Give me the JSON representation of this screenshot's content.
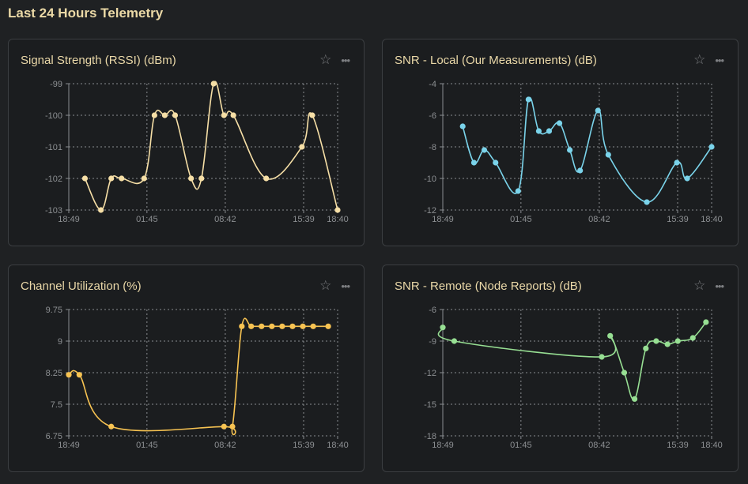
{
  "page": {
    "title": "Last 24 Hours Telemetry"
  },
  "panels": [
    {
      "title": "Signal Strength (RSSI) (dBm)",
      "star": "☆",
      "more": "•••",
      "color": "#f6dfa6"
    },
    {
      "title": "SNR - Local (Our Measurements) (dB)",
      "star": "☆",
      "more": "•••",
      "color": "#7ad3ea"
    },
    {
      "title": "Channel Utilization (%)",
      "star": "☆",
      "more": "•••",
      "color": "#f7c352"
    },
    {
      "title": "SNR - Remote (Node Reports) (dB)",
      "star": "☆",
      "more": "•••",
      "color": "#97df93"
    }
  ],
  "chart_data": [
    {
      "type": "line",
      "title": "Signal Strength (RSSI) (dBm)",
      "x_ticks": [
        "18:49",
        "01:45",
        "08:42",
        "15:39",
        "18:40"
      ],
      "y_ticks": [
        "-99",
        "-100",
        "-101",
        "-102",
        "-103"
      ],
      "ylim": [
        -103,
        -99
      ],
      "xlim": [
        "18:49",
        "18:40"
      ],
      "grid": true,
      "color": "#f6dfa6",
      "points": [
        {
          "x": "20:15",
          "y": -102
        },
        {
          "x": "21:40",
          "y": -103
        },
        {
          "x": "22:35",
          "y": -102
        },
        {
          "x": "23:30",
          "y": -102
        },
        {
          "x": "01:30",
          "y": -102
        },
        {
          "x": "02:25",
          "y": -100
        },
        {
          "x": "03:20",
          "y": -100
        },
        {
          "x": "04:15",
          "y": -100
        },
        {
          "x": "05:40",
          "y": -102
        },
        {
          "x": "06:35",
          "y": -102
        },
        {
          "x": "07:40",
          "y": -99
        },
        {
          "x": "08:35",
          "y": -100
        },
        {
          "x": "09:25",
          "y": -100
        },
        {
          "x": "12:20",
          "y": -102
        },
        {
          "x": "15:30",
          "y": -101
        },
        {
          "x": "16:25",
          "y": -100
        },
        {
          "x": "18:40",
          "y": -103
        }
      ]
    },
    {
      "type": "line",
      "title": "SNR - Local (Our Measurements) (dB)",
      "x_ticks": [
        "18:49",
        "01:45",
        "08:42",
        "15:39",
        "18:40"
      ],
      "y_ticks": [
        "-4",
        "-6",
        "-8",
        "-10",
        "-12"
      ],
      "ylim": [
        -12,
        -4
      ],
      "xlim": [
        "18:49",
        "18:40"
      ],
      "grid": true,
      "color": "#7ad3ea",
      "points": [
        {
          "x": "20:35",
          "y": -6.7
        },
        {
          "x": "21:35",
          "y": -9.0
        },
        {
          "x": "22:30",
          "y": -8.2
        },
        {
          "x": "23:30",
          "y": -9.0
        },
        {
          "x": "01:30",
          "y": -10.8
        },
        {
          "x": "02:25",
          "y": -5.0
        },
        {
          "x": "03:20",
          "y": -7.0
        },
        {
          "x": "04:15",
          "y": -7.0
        },
        {
          "x": "05:10",
          "y": -6.5
        },
        {
          "x": "06:05",
          "y": -8.2
        },
        {
          "x": "07:00",
          "y": -9.5
        },
        {
          "x": "08:35",
          "y": -5.7
        },
        {
          "x": "09:30",
          "y": -8.5
        },
        {
          "x": "12:55",
          "y": -11.5
        },
        {
          "x": "15:35",
          "y": -9.0
        },
        {
          "x": "16:30",
          "y": -10.0
        },
        {
          "x": "18:40",
          "y": -8.0
        }
      ]
    },
    {
      "type": "line",
      "title": "Channel Utilization (%)",
      "x_ticks": [
        "18:49",
        "01:45",
        "08:42",
        "15:39",
        "18:40"
      ],
      "y_ticks": [
        "9.75",
        "9",
        "8.25",
        "7.5",
        "6.75"
      ],
      "ylim": [
        6.75,
        9.75
      ],
      "xlim": [
        "18:49",
        "18:40"
      ],
      "grid": true,
      "color": "#f7c352",
      "points": [
        {
          "x": "18:49",
          "y": 8.2
        },
        {
          "x": "19:45",
          "y": 8.2
        },
        {
          "x": "22:35",
          "y": 6.97
        },
        {
          "x": "08:35",
          "y": 6.97
        },
        {
          "x": "09:20",
          "y": 6.97
        },
        {
          "x": "10:10",
          "y": 9.35
        },
        {
          "x": "11:00",
          "y": 9.35
        },
        {
          "x": "11:55",
          "y": 9.35
        },
        {
          "x": "12:50",
          "y": 9.35
        },
        {
          "x": "13:45",
          "y": 9.35
        },
        {
          "x": "14:40",
          "y": 9.35
        },
        {
          "x": "15:35",
          "y": 9.35
        },
        {
          "x": "16:30",
          "y": 9.35
        },
        {
          "x": "17:50",
          "y": 9.35
        }
      ]
    },
    {
      "type": "line",
      "title": "SNR - Remote (Node Reports) (dB)",
      "x_ticks": [
        "18:49",
        "01:45",
        "08:42",
        "15:39",
        "18:40"
      ],
      "y_ticks": [
        "-6",
        "-9",
        "-12",
        "-15",
        "-18"
      ],
      "ylim": [
        -18,
        -6
      ],
      "xlim": [
        "18:49",
        "18:40"
      ],
      "grid": true,
      "color": "#97df93",
      "points": [
        {
          "x": "18:49",
          "y": -7.7
        },
        {
          "x": "19:50",
          "y": -9.0
        },
        {
          "x": "08:55",
          "y": -10.5
        },
        {
          "x": "09:40",
          "y": -8.5
        },
        {
          "x": "10:55",
          "y": -12.0
        },
        {
          "x": "11:50",
          "y": -14.5
        },
        {
          "x": "12:50",
          "y": -9.7
        },
        {
          "x": "13:45",
          "y": -9.0
        },
        {
          "x": "14:45",
          "y": -9.3
        },
        {
          "x": "15:40",
          "y": -9.0
        },
        {
          "x": "17:00",
          "y": -8.7
        },
        {
          "x": "18:10",
          "y": -7.2
        }
      ]
    }
  ]
}
